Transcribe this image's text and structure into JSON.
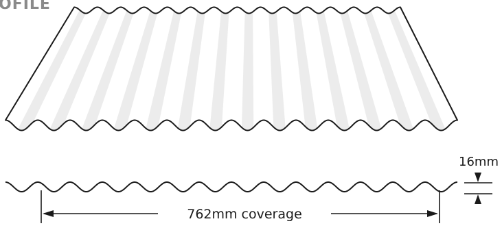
{
  "header": {
    "title_fragment": "OFILE"
  },
  "profile": {
    "coverage_label": "762mm coverage",
    "thickness_label": "16mm",
    "corrugation_count": 14
  },
  "colors": {
    "outline": "#1a1a1a",
    "highlight": "#e6e6e6",
    "header_text": "#8a8a8a"
  }
}
